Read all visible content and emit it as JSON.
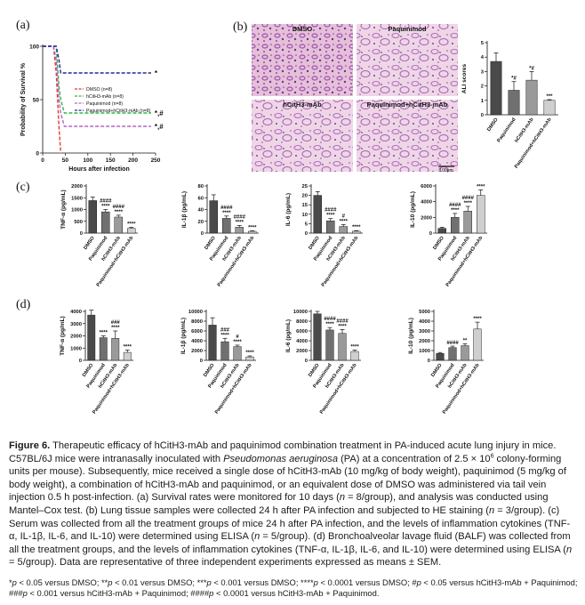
{
  "panel_labels": [
    "(a)",
    "(b)",
    "(c)",
    "(d)"
  ],
  "histology": {
    "labels": [
      "DMSO",
      "Paquinimod",
      "hCitH3-mAb",
      "Paquinimod+hCitH3-mAb"
    ],
    "scale_bar": "100μm"
  },
  "chart_data": [
    {
      "type": "line",
      "xlabel": "Hours after infection",
      "ylabel": "Probability of Survival %",
      "x": [
        0,
        24,
        30,
        36,
        40,
        48,
        240
      ],
      "xlim": [
        0,
        250
      ],
      "xticks": [
        0,
        50,
        100,
        150,
        200,
        250
      ],
      "ylim": [
        0,
        100
      ],
      "yticks": [
        0,
        50,
        100
      ],
      "series": [
        {
          "name": "DMSO (n=8)",
          "color": "#e03a2f",
          "values": [
            100,
            100,
            75,
            25,
            0,
            null,
            null
          ]
        },
        {
          "name": "hCitH3-mAb (n=8)",
          "color": "#33b548",
          "values": [
            100,
            100,
            100,
            62.5,
            50,
            37.5,
            37.5
          ],
          "annotation": "*,#"
        },
        {
          "name": "Paquinimod (n=8)",
          "color": "#b266c8",
          "values": [
            100,
            100,
            87.5,
            50,
            37.5,
            25,
            25
          ],
          "annotation": "*,#"
        },
        {
          "name": "Paquinimod+hCitH3-mAb (n=8)",
          "color": "#1f2d8a",
          "values": [
            100,
            100,
            100,
            87.5,
            75,
            75,
            75
          ],
          "annotation": "*"
        }
      ]
    },
    {
      "type": "bar",
      "ylabel": "ALI scores",
      "categories": [
        "DMSO",
        "Paquinimod",
        "hCitH3-mAb",
        "Paquinimod+hCitH3-mAb"
      ],
      "values": [
        3.7,
        1.7,
        2.4,
        1.0
      ],
      "errors": [
        0.6,
        0.6,
        0.6,
        0.05
      ],
      "colors": [
        "#4a4a4a",
        "#707070",
        "#9a9a9a",
        "#cfcfcf"
      ],
      "ylim": [
        0,
        5
      ],
      "yticks": [
        0,
        1,
        2,
        3,
        4,
        5
      ],
      "annotations": [
        null,
        [
          "*#"
        ],
        [
          "*#"
        ],
        [
          "***"
        ]
      ]
    },
    {
      "type": "bar",
      "ylabel": "TNF-α (pg/mL)",
      "categories": [
        "DMSO",
        "Paquinimod",
        "hCitH3-mAb",
        "Paquinimod+hCitH3-mAb"
      ],
      "values": [
        1380,
        900,
        680,
        200
      ],
      "errors": [
        150,
        100,
        80,
        40
      ],
      "colors": [
        "#4a4a4a",
        "#707070",
        "#9a9a9a",
        "#cfcfcf"
      ],
      "ylim": [
        0,
        2000
      ],
      "yticks": [
        0,
        500,
        1000,
        1500,
        2000
      ],
      "annotations": [
        null,
        [
          "####",
          "****"
        ],
        [
          "####",
          "****"
        ],
        [
          "****"
        ]
      ]
    },
    {
      "type": "bar",
      "ylabel": "IL-1β (pg/mL)",
      "categories": [
        "DMSO",
        "Paquinimod",
        "hCitH3-mAb",
        "Paquinimod+hCitH3-mAb"
      ],
      "values": [
        55,
        25,
        10,
        3
      ],
      "errors": [
        10,
        4,
        3,
        1
      ],
      "colors": [
        "#4a4a4a",
        "#707070",
        "#9a9a9a",
        "#cfcfcf"
      ],
      "ylim": [
        0,
        80
      ],
      "yticks": [
        0,
        20,
        40,
        60,
        80
      ],
      "annotations": [
        null,
        [
          "####",
          "****"
        ],
        [
          "####",
          "****"
        ],
        [
          "****"
        ]
      ]
    },
    {
      "type": "bar",
      "ylabel": "IL-6 (pg/mL)",
      "categories": [
        "DMSO",
        "Paquinimod",
        "hCitH3-mAb",
        "Paquinimod+hCitH3-mAb"
      ],
      "values": [
        20,
        6.5,
        3.5,
        1
      ],
      "errors": [
        2,
        1.2,
        1,
        0.3
      ],
      "colors": [
        "#4a4a4a",
        "#707070",
        "#9a9a9a",
        "#cfcfcf"
      ],
      "ylim": [
        0,
        25
      ],
      "yticks": [
        0,
        5,
        10,
        15,
        20,
        25
      ],
      "annotations": [
        null,
        [
          "####",
          "****"
        ],
        [
          "#",
          "****"
        ],
        [
          "****"
        ]
      ]
    },
    {
      "type": "bar",
      "ylabel": "IL-10 (pg/mL)",
      "categories": [
        "DMSO",
        "Paquinimod",
        "hCitH3-mAb",
        "Paquinimod+hCitH3-mAb"
      ],
      "values": [
        600,
        2000,
        2800,
        4800
      ],
      "errors": [
        150,
        500,
        600,
        700
      ],
      "colors": [
        "#4a4a4a",
        "#707070",
        "#9a9a9a",
        "#cfcfcf"
      ],
      "ylim": [
        0,
        6000
      ],
      "yticks": [
        0,
        2000,
        4000,
        6000
      ],
      "annotations": [
        null,
        [
          "####",
          "****"
        ],
        [
          "####",
          "****"
        ],
        [
          "****"
        ]
      ]
    },
    {
      "type": "bar",
      "ylabel": "TNF-α (pg/mL)",
      "categories": [
        "DMSO",
        "Paquinimod",
        "hCitH3-mAb",
        "Paquinimod+hCitH3-mAb"
      ],
      "values": [
        3700,
        1850,
        1800,
        650
      ],
      "errors": [
        400,
        150,
        600,
        200
      ],
      "colors": [
        "#4a4a4a",
        "#707070",
        "#9a9a9a",
        "#cfcfcf"
      ],
      "ylim": [
        0,
        4000
      ],
      "yticks": [
        0,
        1000,
        2000,
        3000,
        4000
      ],
      "annotations": [
        null,
        [
          "****"
        ],
        [
          "###",
          "****"
        ],
        [
          "****"
        ]
      ]
    },
    {
      "type": "bar",
      "ylabel": "IL-1β (pg/mL)",
      "categories": [
        "DMSO",
        "Paquinimod",
        "hCitH3-mAb",
        "Paquinimod+hCitH3-mAb"
      ],
      "values": [
        7200,
        3800,
        2800,
        700
      ],
      "errors": [
        1500,
        700,
        300,
        200
      ],
      "colors": [
        "#4a4a4a",
        "#707070",
        "#9a9a9a",
        "#cfcfcf"
      ],
      "ylim": [
        0,
        10000
      ],
      "yticks": [
        0,
        2000,
        4000,
        6000,
        8000,
        10000
      ],
      "annotations": [
        null,
        [
          "###",
          "****"
        ],
        [
          "#",
          "****"
        ],
        [
          "****"
        ]
      ]
    },
    {
      "type": "bar",
      "ylabel": "IL-6 (pg/mL)",
      "categories": [
        "DMSO",
        "Paquinimod",
        "hCitH3-mAb",
        "Paquinimod+hCitH3-mAb"
      ],
      "values": [
        9500,
        6200,
        5500,
        1800
      ],
      "errors": [
        500,
        500,
        800,
        300
      ],
      "colors": [
        "#4a4a4a",
        "#707070",
        "#9a9a9a",
        "#cfcfcf"
      ],
      "ylim": [
        0,
        10000
      ],
      "yticks": [
        0,
        2000,
        4000,
        6000,
        8000,
        10000
      ],
      "annotations": [
        null,
        [
          "####",
          "****"
        ],
        [
          "####",
          "****"
        ],
        [
          "****"
        ]
      ]
    },
    {
      "type": "bar",
      "ylabel": "IL-10 (pg/mL)",
      "categories": [
        "DMSO",
        "Paquinimod",
        "hCitH3-mAb",
        "Paquinimod+hCitH3-mAb"
      ],
      "values": [
        700,
        1300,
        1500,
        3200
      ],
      "errors": [
        100,
        150,
        200,
        700
      ],
      "colors": [
        "#4a4a4a",
        "#707070",
        "#9a9a9a",
        "#cfcfcf"
      ],
      "ylim": [
        0,
        5000
      ],
      "yticks": [
        0,
        1000,
        2000,
        3000,
        4000,
        5000
      ],
      "annotations": [
        null,
        [
          "####"
        ],
        [
          "**"
        ],
        [
          "****"
        ]
      ]
    }
  ],
  "caption": {
    "label": "Figure 6.",
    "segments": [
      " Therapeutic efficacy of hCitH3-mAb and paquinimod combination treatment in PA-induced acute lung injury in mice. C57BL/6J mice were intranasally inoculated with ",
      "Pseudomonas aeruginosa",
      " (PA) at a concentration of 2.5 × 10",
      "6",
      " colony-forming units per mouse). Subsequently, mice received a single dose of hCitH3-mAb (10 mg/kg of body weight), paquinimod (5 mg/kg of body weight), a combination of hCitH3-mAb and paquinimod, or an equivalent dose of DMSO was administered via tail vein injection 0.5 h post-infection. (a) Survival rates were monitored for 10 days (",
      "n",
      " = 8/group), and analysis was conducted using Mantel–Cox test. (b) Lung tissue samples were collected 24 h after PA infection and subjected to HE staining (",
      "n",
      " = 3/group). (c) Serum was collected from all the treatment groups of mice 24 h after PA infection, and the levels of inflammation cytokines (TNF-α, IL-1β, IL-6, and IL-10) were determined using ELISA (",
      "n",
      " = 5/group). (d) Bronchoalveolar lavage fluid (BALF) was collected from all the treatment groups, and the levels of inflammation cytokines (TNF-α, IL-1β, IL-6, and IL-10) were determined using ELISA (",
      "n",
      " = 5/group). Data are representative of three independent experiments expressed as means ± SEM."
    ],
    "footnote": [
      "*",
      "p",
      " < 0.05 versus DMSO; **",
      "p",
      " < 0.01 versus DMSO; ***",
      "p",
      " < 0.001 versus DMSO; ****",
      "p",
      " < 0.0001 versus DMSO; #",
      "p",
      " < 0.05 versus hCitH3-mAb + Paquinimod; ###",
      "p",
      " < 0.001 versus hCitH3-mAb + Paquinimod; ####",
      "p",
      " < 0.0001 versus hCitH3-mAb + Paquinimod."
    ]
  }
}
